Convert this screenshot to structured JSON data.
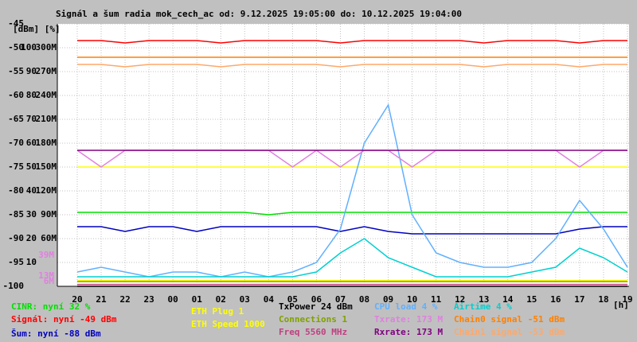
{
  "chart_data": {
    "type": "line",
    "title": "Signál a šum radia mok_cech_ac od: 9.12.2025 19:05:00 do: 10.12.2025 19:04:00",
    "ylabel": "[dBm] [%]",
    "xlabel": "[h]",
    "categories": [
      "20",
      "21",
      "22",
      "23",
      "00",
      "01",
      "02",
      "03",
      "04",
      "05",
      "06",
      "07",
      "08",
      "09",
      "10",
      "11",
      "12",
      "13",
      "14",
      "15",
      "16",
      "17",
      "18",
      "19"
    ],
    "ylim": [
      -100,
      -45
    ],
    "yticks": [
      -45,
      -50,
      -55,
      -60,
      -65,
      -70,
      -75,
      -80,
      -85,
      -90,
      -95,
      -100
    ],
    "y2lim": [
      0,
      110
    ],
    "y2ticks": [
      100,
      90,
      80,
      70,
      60,
      50,
      40,
      30,
      20,
      10
    ],
    "y3lim": [
      0,
      330
    ],
    "y3ticks": [
      {
        "value": 300,
        "label": "300M"
      },
      {
        "value": 270,
        "label": "270M"
      },
      {
        "value": 240,
        "label": "240M"
      },
      {
        "value": 210,
        "label": "210M"
      },
      {
        "value": 180,
        "label": "180M"
      },
      {
        "value": 150,
        "label": "150M"
      },
      {
        "value": 120,
        "label": "120M"
      },
      {
        "value": 90,
        "label": "90M"
      },
      {
        "value": 60,
        "label": "60M"
      }
    ],
    "rate_marks": [
      {
        "value": 39,
        "label": "39M"
      },
      {
        "value": 13,
        "label": "13M"
      },
      {
        "value": 6,
        "label": "6M"
      }
    ],
    "rate_marks_color": "#e080e0",
    "grid": true,
    "series": [
      {
        "name": "CINR: nyní 32 %",
        "color": "#00e000",
        "values": [
          -84.5,
          -84.5,
          -84.5,
          -84.5,
          -84.5,
          -84.5,
          -84.5,
          -84.5,
          -85,
          -84.5,
          -84.5,
          -84.5,
          -84.5,
          -84.5,
          -84.5,
          -84.5,
          -84.5,
          -84.5,
          -84.5,
          -84.5,
          -84.5,
          -84.5,
          -84.5,
          -84.5
        ]
      },
      {
        "name": "Signál: nyní -49 dBm",
        "color": "#ff0000",
        "values": [
          -48.5,
          -48.5,
          -49,
          -48.5,
          -48.5,
          -48.5,
          -49,
          -48.5,
          -48.5,
          -48.5,
          -48.5,
          -49,
          -48.5,
          -48.5,
          -48.5,
          -48.5,
          -48.5,
          -49,
          -48.5,
          -48.5,
          -48.5,
          -49,
          -48.5,
          -48.5
        ]
      },
      {
        "name": "Šum: nyní -88 dBm",
        "color": "#0000c0",
        "values": [
          -87.5,
          -87.5,
          -88.5,
          -87.5,
          -87.5,
          -88.5,
          -87.5,
          -87.5,
          -87.5,
          -87.5,
          -87.5,
          -88.5,
          -87.5,
          -88.5,
          -89,
          -89,
          -89,
          -89,
          -89,
          -89,
          -89,
          -88,
          -87.5,
          -87.5
        ]
      },
      {
        "name": "ETH Plug 1",
        "color": "#ffff00",
        "values": [
          -98.8,
          -98.8,
          -98.8,
          -98.8,
          -98.8,
          -98.8,
          -98.8,
          -98.8,
          -98.8,
          -98.8,
          -98.8,
          -98.8,
          -98.8,
          -98.8,
          -98.8,
          -98.8,
          -98.8,
          -98.8,
          -98.8,
          -98.8,
          -98.8,
          -98.8,
          -98.8,
          -98.8
        ]
      },
      {
        "name": "ETH Speed 1000",
        "color": "#ffff00",
        "values": [
          -75,
          -75,
          -75,
          -75,
          -75,
          -75,
          -75,
          -75,
          -75,
          -75,
          -75,
          -75,
          -75,
          -75,
          -75,
          -75,
          -75,
          -75,
          -75,
          -75,
          -75,
          -75,
          -75,
          -75
        ]
      },
      {
        "name": "TxPower 24 dBm",
        "color": "#000000",
        "values": [
          -100,
          -100,
          -100,
          -100,
          -100,
          -100,
          -100,
          -100,
          -100,
          -100,
          -100,
          -100,
          -100,
          -100,
          -100,
          -100,
          -100,
          -100,
          -100,
          -100,
          -100,
          -100,
          -100,
          -100
        ]
      },
      {
        "name": "Connections 1",
        "color": "#80a000",
        "values": [
          -99,
          -99,
          -99,
          -99,
          -99,
          -99,
          -99,
          -99,
          -99,
          -99,
          -99,
          -99,
          -99,
          -99,
          -99,
          -99,
          -99,
          -99,
          -99,
          -99,
          -99,
          -99,
          -99,
          -99
        ]
      },
      {
        "name": "Freq 5560 MHz",
        "color": "#c04080",
        "values": [
          -99.6,
          -99.6,
          -99.6,
          -99.6,
          -99.6,
          -99.6,
          -99.6,
          -99.6,
          -99.6,
          -99.6,
          -99.6,
          -99.6,
          -99.6,
          -99.6,
          -99.6,
          -99.6,
          -99.6,
          -99.6,
          -99.6,
          -99.6,
          -99.6,
          -99.6,
          -99.6,
          -99.6
        ]
      },
      {
        "name": "CPU load 4 %",
        "color": "#60b0ff",
        "values": [
          -97,
          -96,
          -97,
          -98,
          -97,
          -97,
          -98,
          -97,
          -98,
          -97,
          -95,
          -88,
          -70,
          -62,
          -85,
          -93,
          -95,
          -96,
          -96,
          -95,
          -90,
          -82,
          -88,
          -96
        ]
      },
      {
        "name": "Txrate: 173 M",
        "color": "#e080e0",
        "values": [
          -71.5,
          -75,
          -71.5,
          -71.5,
          -71.5,
          -71.5,
          -71.5,
          -71.5,
          -71.5,
          -75,
          -71.5,
          -75,
          -71.5,
          -71.5,
          -75,
          -71.5,
          -71.5,
          -71.5,
          -71.5,
          -71.5,
          -71.5,
          -75,
          -71.5,
          -71.5
        ]
      },
      {
        "name": "Rxrate: 173 M",
        "color": "#800080",
        "values": [
          -71.5,
          -71.5,
          -71.5,
          -71.5,
          -71.5,
          -71.5,
          -71.5,
          -71.5,
          -71.5,
          -71.5,
          -71.5,
          -71.5,
          -71.5,
          -71.5,
          -71.5,
          -71.5,
          -71.5,
          -71.5,
          -71.5,
          -71.5,
          -71.5,
          -71.5,
          -71.5,
          -71.5
        ]
      },
      {
        "name": "Airtime 4 %",
        "color": "#00d0d0",
        "values": [
          -98,
          -98,
          -98,
          -98,
          -98,
          -98,
          -98,
          -98,
          -98,
          -98,
          -97,
          -93,
          -90,
          -94,
          -96,
          -98,
          -98,
          -98,
          -98,
          -97,
          -96,
          -92,
          -94,
          -97
        ]
      },
      {
        "name": "Chain0 signal -51 dBm",
        "color": "#ff8000",
        "values": [
          -52,
          -52,
          -52,
          -52,
          -52,
          -52,
          -52,
          -52,
          -52,
          -52,
          -52,
          -52,
          -52,
          -52,
          -52,
          -52,
          -52,
          -52,
          -52,
          -52,
          -52,
          -52,
          -52,
          -52
        ]
      },
      {
        "name": "Chain1 signal -53 dBm",
        "color": "#ffa868",
        "values": [
          -53.5,
          -53.5,
          -54,
          -53.5,
          -53.5,
          -53.5,
          -54,
          -53.5,
          -53.5,
          -53.5,
          -53.5,
          -54,
          -53.5,
          -53.5,
          -53.5,
          -53.5,
          -53.5,
          -54,
          -53.5,
          -53.5,
          -53.5,
          -54,
          -53.5,
          -53.5
        ]
      }
    ]
  }
}
